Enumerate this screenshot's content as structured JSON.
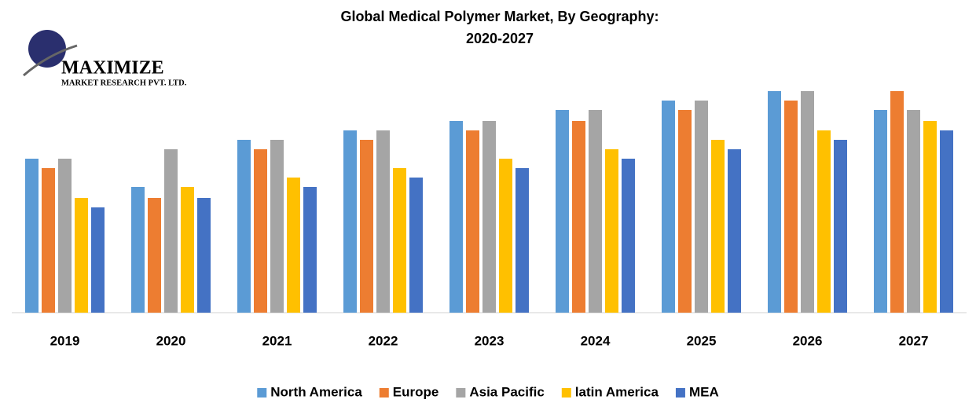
{
  "logo": {
    "name": "MAXIMIZE",
    "tagline": "MARKET RESEARCH PVT. LTD."
  },
  "chart_data": {
    "type": "bar",
    "title": "Global Medical Polymer Market, By Geography:",
    "subtitle": "2020-2027",
    "categories": [
      "2019",
      "2020",
      "2021",
      "2022",
      "2023",
      "2024",
      "2025",
      "2026",
      "2027"
    ],
    "series": [
      {
        "name": "North America",
        "color": "#5b9bd5",
        "values": [
          196,
          160,
          220,
          232,
          244,
          258,
          270,
          282,
          258
        ]
      },
      {
        "name": "Europe",
        "color": "#ed7d31",
        "values": [
          184,
          146,
          208,
          220,
          232,
          244,
          258,
          270,
          282
        ]
      },
      {
        "name": "Asia Pacific",
        "color": "#a5a5a5",
        "values": [
          196,
          208,
          220,
          232,
          244,
          258,
          270,
          282,
          258
        ]
      },
      {
        "name": "latin  America",
        "color": "#ffc000",
        "values": [
          146,
          160,
          172,
          184,
          196,
          208,
          220,
          232,
          244
        ]
      },
      {
        "name": "MEA",
        "color": "#4472c4",
        "values": [
          134,
          146,
          160,
          172,
          184,
          196,
          208,
          220,
          232
        ]
      }
    ],
    "ylim": [
      0,
      300
    ],
    "grid": false,
    "legend": "bottom"
  }
}
